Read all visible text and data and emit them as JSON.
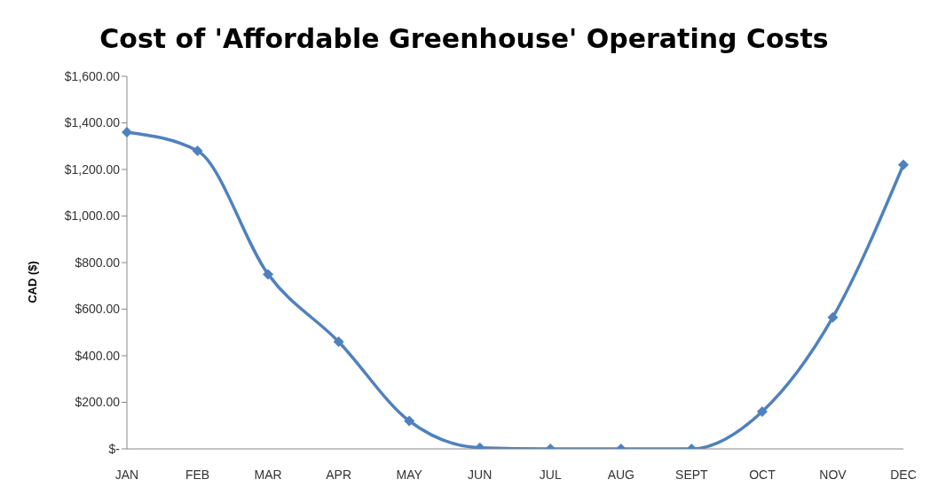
{
  "chart_data": {
    "type": "line",
    "title": "Cost of 'Affordable Greenhouse' Operating Costs",
    "ylabel": "CAD ($)",
    "categories": [
      "JAN",
      "FEB",
      "MAR",
      "APR",
      "MAY",
      "JUN",
      "JUL",
      "AUG",
      "SEPT",
      "OCT",
      "NOV",
      "DEC"
    ],
    "series": [
      {
        "color": "#4f81bd",
        "values": [
          1360,
          1280,
          750,
          460,
          120,
          5,
          0,
          0,
          0,
          160,
          565,
          1220
        ]
      }
    ],
    "ylim": [
      0,
      1600
    ],
    "yticks": [
      {
        "value": 0,
        "label": "$-"
      },
      {
        "value": 200,
        "label": "$200.00"
      },
      {
        "value": 400,
        "label": "$400.00"
      },
      {
        "value": 600,
        "label": "$600.00"
      },
      {
        "value": 800,
        "label": "$800.00"
      },
      {
        "value": 1000,
        "label": "$1,000.00"
      },
      {
        "value": 1200,
        "label": "$1,200.00"
      },
      {
        "value": 1400,
        "label": "$1,400.00"
      },
      {
        "value": 1600,
        "label": "$1,600.00"
      }
    ],
    "grid": false,
    "legend": false,
    "marker": "diamond",
    "line_style": "solid"
  }
}
